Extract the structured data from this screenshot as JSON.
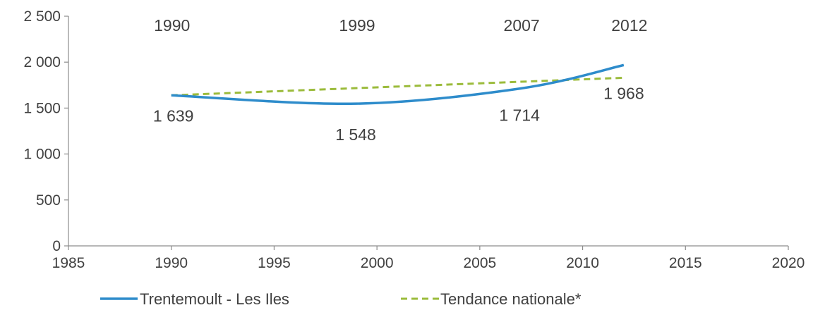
{
  "chart_data": {
    "type": "line",
    "title": "",
    "xlabel": "",
    "ylabel": "",
    "xlim": [
      1985,
      2020
    ],
    "ylim": [
      0,
      2500
    ],
    "x_ticks": [
      1985,
      1990,
      1995,
      2000,
      2005,
      2010,
      2015,
      2020
    ],
    "y_ticks": [
      {
        "value": 0,
        "label": "0"
      },
      {
        "value": 500,
        "label": "500"
      },
      {
        "value": 1000,
        "label": "1 000"
      },
      {
        "value": 1500,
        "label": "1 500"
      },
      {
        "value": 2000,
        "label": "2 000"
      },
      {
        "value": 2500,
        "label": "2 500"
      }
    ],
    "grid": false,
    "legend_position": "bottom",
    "series": [
      {
        "name": "Trentemoult - Les Iles",
        "color": "#2e8ccb",
        "style": "solid",
        "smooth": true,
        "points": [
          {
            "x": 1990,
            "y": 1639
          },
          {
            "x": 1999,
            "y": 1548
          },
          {
            "x": 2007,
            "y": 1714
          },
          {
            "x": 2012,
            "y": 1968
          }
        ]
      },
      {
        "name": "Tendance nationale*",
        "color": "#9bbb3b",
        "style": "dashed",
        "smooth": false,
        "points": [
          {
            "x": 1990,
            "y": 1639
          },
          {
            "x": 2012,
            "y": 1830
          }
        ]
      }
    ],
    "year_annotations": [
      {
        "x": 1990,
        "label": "1990"
      },
      {
        "x": 1999,
        "label": "1999"
      },
      {
        "x": 2007,
        "label": "2007"
      },
      {
        "x": 2012,
        "label": "2012"
      }
    ],
    "value_labels": [
      {
        "x": 1990,
        "y": 1639,
        "label": "1 639"
      },
      {
        "x": 1999,
        "y": 1548,
        "label": "1 548"
      },
      {
        "x": 2007,
        "y": 1714,
        "label": "1 714"
      },
      {
        "x": 2012,
        "y": 1968,
        "label": "1 968"
      }
    ]
  }
}
